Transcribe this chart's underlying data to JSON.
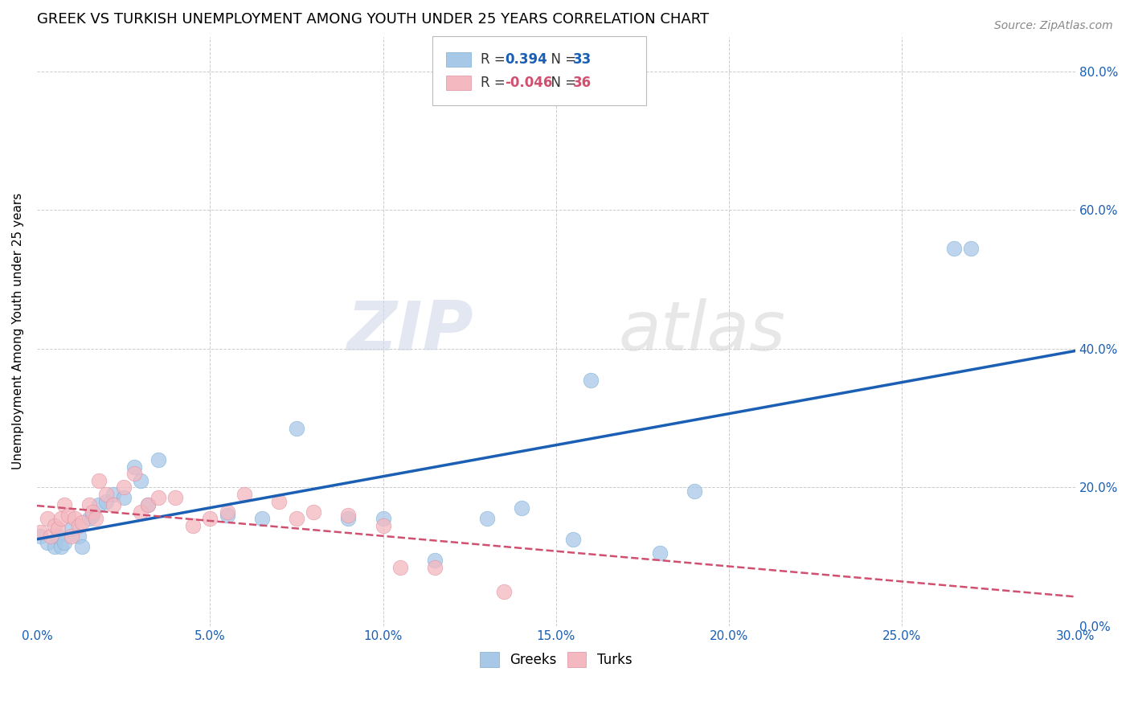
{
  "title": "GREEK VS TURKISH UNEMPLOYMENT AMONG YOUTH UNDER 25 YEARS CORRELATION CHART",
  "source": "Source: ZipAtlas.com",
  "ylabel": "Unemployment Among Youth under 25 years",
  "xlim": [
    0.0,
    0.3
  ],
  "ylim": [
    0.0,
    0.85
  ],
  "watermark_zip": "ZIP",
  "watermark_atlas": "atlas",
  "legend_greek_r": "0.394",
  "legend_greek_n": "33",
  "legend_turk_r": "-0.046",
  "legend_turk_n": "36",
  "greek_color": "#a8c8e8",
  "turk_color": "#f4b8c0",
  "greek_line_color": "#1a5fb4",
  "turk_line_color": "#d05070",
  "greek_scatter_x": [
    0.001,
    0.003,
    0.005,
    0.006,
    0.007,
    0.008,
    0.01,
    0.012,
    0.013,
    0.015,
    0.016,
    0.018,
    0.02,
    0.022,
    0.025,
    0.028,
    0.03,
    0.032,
    0.035,
    0.055,
    0.065,
    0.075,
    0.09,
    0.1,
    0.115,
    0.13,
    0.14,
    0.155,
    0.16,
    0.18,
    0.19,
    0.265,
    0.27
  ],
  "greek_scatter_y": [
    0.13,
    0.12,
    0.115,
    0.13,
    0.115,
    0.12,
    0.14,
    0.13,
    0.115,
    0.155,
    0.16,
    0.175,
    0.18,
    0.19,
    0.185,
    0.23,
    0.21,
    0.175,
    0.24,
    0.16,
    0.155,
    0.285,
    0.155,
    0.155,
    0.095,
    0.155,
    0.17,
    0.125,
    0.355,
    0.105,
    0.195,
    0.545,
    0.545
  ],
  "turk_scatter_x": [
    0.001,
    0.003,
    0.004,
    0.005,
    0.006,
    0.007,
    0.008,
    0.009,
    0.01,
    0.011,
    0.012,
    0.013,
    0.015,
    0.016,
    0.017,
    0.018,
    0.02,
    0.022,
    0.025,
    0.028,
    0.03,
    0.032,
    0.035,
    0.04,
    0.045,
    0.05,
    0.055,
    0.06,
    0.07,
    0.075,
    0.08,
    0.09,
    0.1,
    0.105,
    0.115,
    0.135
  ],
  "turk_scatter_y": [
    0.135,
    0.155,
    0.13,
    0.145,
    0.14,
    0.155,
    0.175,
    0.16,
    0.13,
    0.155,
    0.145,
    0.15,
    0.175,
    0.165,
    0.155,
    0.21,
    0.19,
    0.175,
    0.2,
    0.22,
    0.165,
    0.175,
    0.185,
    0.185,
    0.145,
    0.155,
    0.165,
    0.19,
    0.18,
    0.155,
    0.165,
    0.16,
    0.145,
    0.085,
    0.085,
    0.05
  ],
  "title_fontsize": 13,
  "source_fontsize": 10,
  "axis_label_fontsize": 11,
  "tick_fontsize": 11,
  "background_color": "#ffffff",
  "grid_color": "#cccccc"
}
